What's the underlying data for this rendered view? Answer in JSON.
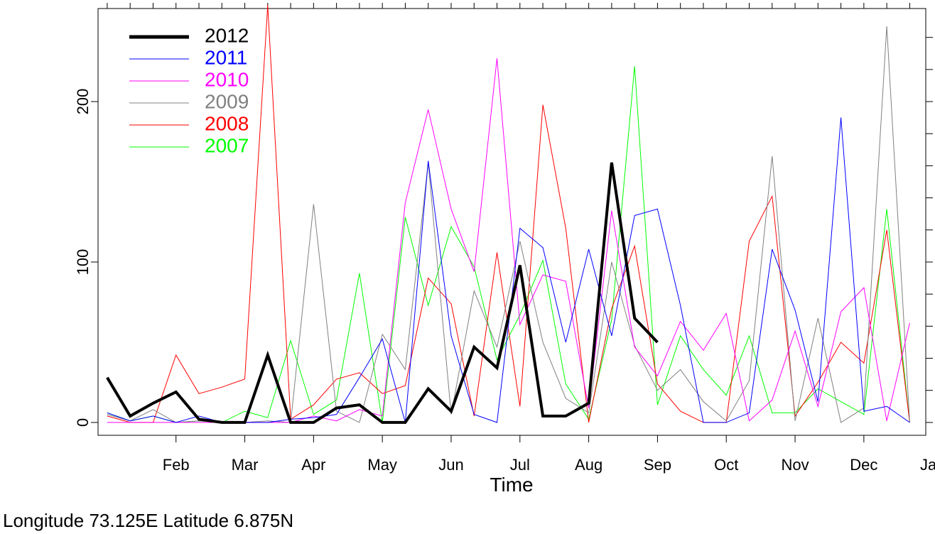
{
  "chart_data": {
    "type": "line",
    "xlabel": "Time",
    "ylabel": "",
    "ylim": [
      -8,
      258
    ],
    "xlim": [
      0.6,
      36.7
    ],
    "y_ticks": [
      0,
      100,
      200
    ],
    "month_labels": [
      "Feb",
      "Mar",
      "Apr",
      "May",
      "Jun",
      "Jul",
      "Aug",
      "Sep",
      "Oct",
      "Nov",
      "Dec",
      "Jan"
    ],
    "month_tick_positions": [
      4,
      7,
      10,
      13,
      16,
      19,
      22,
      25,
      28,
      31,
      34,
      37
    ],
    "series": [
      {
        "name": "2007",
        "color": "#00ff00",
        "width": 1,
        "x": [
          1,
          2,
          3,
          4,
          5,
          6,
          7,
          8,
          9,
          10,
          11,
          12,
          13,
          14,
          15,
          16,
          17,
          18,
          19,
          20,
          21,
          22,
          23,
          24,
          25,
          26,
          27,
          28,
          29,
          30,
          31,
          32,
          33,
          34,
          35,
          36
        ],
        "values": [
          6,
          1,
          4,
          0,
          1,
          0,
          7,
          3,
          51,
          5,
          14,
          93,
          0,
          128,
          73,
          122,
          97,
          39,
          67,
          101,
          24,
          2,
          64,
          222,
          11,
          54,
          33,
          17,
          54,
          6,
          6,
          21,
          13,
          5,
          133,
          0
        ]
      },
      {
        "name": "2008",
        "color": "#ff0000",
        "width": 1,
        "x": [
          1,
          2,
          3,
          4,
          5,
          6,
          7,
          8,
          9,
          10,
          11,
          12,
          13,
          14,
          15,
          16,
          17,
          18,
          19,
          20,
          21,
          22,
          23,
          24,
          25,
          26,
          27,
          28,
          29,
          30,
          31,
          32,
          33,
          34,
          35,
          36
        ],
        "values": [
          4,
          0,
          0,
          42,
          18,
          22,
          27,
          260,
          2,
          11,
          27,
          31,
          18,
          23,
          90,
          74,
          4,
          106,
          10,
          198,
          121,
          0,
          71,
          110,
          24,
          7,
          0,
          0,
          113,
          141,
          4,
          25,
          50,
          37,
          120,
          0
        ]
      },
      {
        "name": "2009",
        "color": "#808080",
        "width": 1,
        "x": [
          1,
          2,
          3,
          4,
          5,
          6,
          7,
          8,
          9,
          10,
          11,
          12,
          13,
          14,
          15,
          16,
          17,
          18,
          19,
          20,
          21,
          22,
          23,
          24,
          25,
          26,
          27,
          28,
          29,
          30,
          31,
          32,
          33,
          34,
          35,
          36
        ],
        "values": [
          5,
          1,
          8,
          0,
          1,
          0,
          0,
          1,
          0,
          136,
          7,
          0,
          55,
          33,
          162,
          5,
          82,
          47,
          113,
          50,
          15,
          6,
          100,
          48,
          20,
          33,
          13,
          1,
          26,
          166,
          1,
          65,
          0,
          9,
          247,
          0
        ]
      },
      {
        "name": "2010",
        "color": "#ff00ff",
        "width": 1,
        "x": [
          1,
          2,
          3,
          4,
          5,
          6,
          7,
          8,
          9,
          10,
          11,
          12,
          13,
          14,
          15,
          16,
          17,
          18,
          19,
          20,
          21,
          22,
          23,
          24,
          25,
          26,
          27,
          28,
          29,
          30,
          31,
          32,
          33,
          34,
          35,
          36
        ],
        "values": [
          0,
          0,
          0,
          0,
          0,
          0,
          0,
          0,
          0,
          4,
          1,
          8,
          4,
          137,
          195,
          133,
          94,
          227,
          61,
          92,
          88,
          9,
          132,
          47,
          29,
          63,
          45,
          68,
          1,
          14,
          57,
          10,
          69,
          84,
          1,
          62
        ]
      },
      {
        "name": "2011",
        "color": "#0000ff",
        "width": 1,
        "x": [
          1,
          2,
          3,
          4,
          5,
          6,
          7,
          8,
          9,
          10,
          11,
          12,
          13,
          14,
          15,
          16,
          17,
          18,
          19,
          20,
          21,
          22,
          23,
          24,
          25,
          26,
          27,
          28,
          29,
          30,
          31,
          32,
          33,
          34,
          35,
          36
        ],
        "values": [
          6,
          1,
          4,
          0,
          4,
          0,
          0,
          0,
          2,
          3,
          5,
          28,
          52,
          0,
          163,
          54,
          5,
          0,
          121,
          109,
          50,
          108,
          54,
          129,
          133,
          73,
          0,
          0,
          6,
          108,
          70,
          13,
          190,
          7,
          10,
          0
        ]
      },
      {
        "name": "2012",
        "color": "#000000",
        "width": 4,
        "x": [
          1,
          2,
          3,
          4,
          5,
          6,
          7,
          8,
          9,
          10,
          11,
          12,
          13,
          14,
          15,
          16,
          17,
          18,
          19,
          20,
          21,
          22,
          23,
          24,
          25
        ],
        "values": [
          28,
          4,
          12,
          19,
          2,
          0,
          0,
          42,
          0,
          0,
          9,
          11,
          0,
          0,
          21,
          7,
          47,
          34,
          98,
          4,
          4,
          12,
          162,
          65,
          50
        ]
      }
    ],
    "legend": [
      "2012",
      "2011",
      "2010",
      "2009",
      "2008",
      "2007"
    ],
    "legend_position": "top-left"
  },
  "caption": "Longitude 73.125E Latitude 6.875N"
}
